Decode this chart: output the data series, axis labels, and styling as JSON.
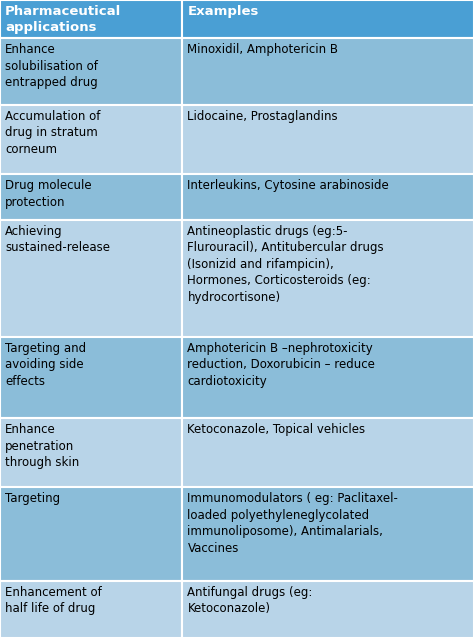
{
  "header": [
    "Pharmaceutical\napplications",
    "Examples"
  ],
  "rows": [
    [
      "Enhance\nsolubilisation of\nentrapped drug",
      "Minoxidil, Amphotericin B"
    ],
    [
      "Accumulation of\ndrug in stratum\ncorneum",
      "Lidocaine, Prostaglandins"
    ],
    [
      "Drug molecule\nprotection",
      "Interleukins, Cytosine arabinoside"
    ],
    [
      "Achieving\nsustained-release",
      "Antineoplastic drugs (eg:5-\nFlurouracil), Antitubercular drugs\n(Isonizid and rifampicin),\nHormones, Corticosteroids (eg:\nhydrocortisone)"
    ],
    [
      "Targeting and\navoiding side\neffects",
      "Amphotericin B –nephrotoxicity\nreduction, Doxorubicin – reduce\ncardiotoxicity"
    ],
    [
      "Enhance\npenetration\nthrough skin",
      "Ketoconazole, Topical vehicles"
    ],
    [
      "Targeting",
      "Immunomodulators ( eg: Paclitaxel-\nloaded polyethyleneglycolated\nimmunoliposome), Antimalarials,\nVaccines"
    ],
    [
      "Enhancement of\nhalf life of drug",
      "Antifungal drugs (eg:\nKetoconazole)"
    ]
  ],
  "header_bg": "#4a9fd4",
  "row_bg_dark": "#8bbdd9",
  "row_bg_light": "#b8d4e8",
  "header_text_color": "#ffffff",
  "row_text_color": "#000000",
  "col_splits": [
    0.385
  ],
  "font_size": 8.5,
  "header_font_size": 9.5,
  "fig_width": 4.74,
  "fig_height": 6.38,
  "dpi": 100
}
